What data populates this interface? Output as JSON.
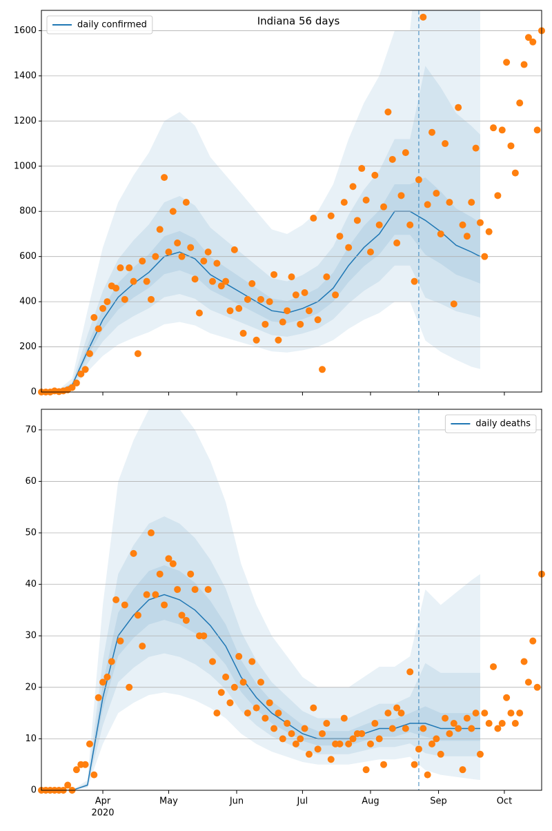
{
  "chart_data": [
    {
      "type": "line",
      "title": "Indiana 56 days",
      "legend": "upper left",
      "grid": true,
      "xlim": [
        "2020-03-04",
        "2020-10-18"
      ],
      "ylim": [
        0,
        1690
      ],
      "yticks": [
        0,
        200,
        400,
        600,
        800,
        1000,
        1200,
        1400,
        1600
      ],
      "vline": "2020-08-23",
      "band_color": "#1f77b4",
      "x": [
        "2020-03-04",
        "2020-03-11",
        "2020-03-18",
        "2020-03-25",
        "2020-04-01",
        "2020-04-08",
        "2020-04-15",
        "2020-04-22",
        "2020-04-29",
        "2020-05-06",
        "2020-05-13",
        "2020-05-20",
        "2020-05-27",
        "2020-06-03",
        "2020-06-10",
        "2020-06-17",
        "2020-06-24",
        "2020-07-01",
        "2020-07-08",
        "2020-07-15",
        "2020-07-22",
        "2020-07-29",
        "2020-08-05",
        "2020-08-12",
        "2020-08-19",
        "2020-08-26",
        "2020-09-02",
        "2020-09-09",
        "2020-09-16",
        "2020-09-20"
      ],
      "series": [
        {
          "name": "daily confirmed",
          "color": "#1f77b4",
          "values": [
            0,
            2,
            30,
            180,
            320,
            420,
            480,
            530,
            600,
            620,
            590,
            520,
            480,
            440,
            400,
            360,
            350,
            370,
            400,
            460,
            560,
            640,
            700,
            800,
            800,
            760,
            710,
            650,
            620,
            600
          ]
        }
      ],
      "bands": [
        {
          "lower": [
            0,
            1,
            15,
            90,
            160,
            210,
            240,
            265,
            300,
            310,
            295,
            260,
            240,
            220,
            200,
            180,
            175,
            185,
            200,
            230,
            280,
            320,
            350,
            400,
            400,
            228,
            178,
            143,
            112,
            102
          ],
          "upper": [
            0,
            4,
            60,
            360,
            640,
            840,
            960,
            1060,
            1200,
            1240,
            1180,
            1040,
            960,
            880,
            800,
            720,
            700,
            740,
            800,
            920,
            1120,
            1280,
            1400,
            1600,
            1600,
            2280,
            2130,
            2080,
            2108,
            2100
          ]
        },
        {
          "lower": [
            0,
            1,
            21,
            126,
            224,
            294,
            336,
            371,
            420,
            434,
            413,
            364,
            336,
            308,
            280,
            252,
            245,
            259,
            280,
            322,
            392,
            448,
            490,
            560,
            560,
            418,
            391,
            358,
            341,
            330
          ],
          "upper": [
            0,
            3,
            42,
            252,
            448,
            588,
            672,
            742,
            840,
            868,
            826,
            728,
            672,
            616,
            560,
            504,
            490,
            518,
            560,
            644,
            784,
            896,
            980,
            1120,
            1120,
            1444,
            1349,
            1235,
            1178,
            1140
          ]
        },
        {
          "lower": [
            0,
            2,
            26,
            157,
            278,
            365,
            418,
            461,
            522,
            539,
            513,
            452,
            418,
            383,
            348,
            313,
            305,
            322,
            348,
            400,
            487,
            557,
            609,
            696,
            696,
            608,
            568,
            520,
            496,
            480
          ],
          "upper": [
            0,
            2,
            35,
            207,
            368,
            483,
            552,
            610,
            690,
            713,
            679,
            598,
            552,
            506,
            460,
            414,
            403,
            426,
            460,
            529,
            644,
            736,
            805,
            920,
            920,
            950,
            888,
            813,
            775,
            750
          ]
        }
      ],
      "points": {
        "color": "#ff7f0e",
        "x": [
          "2020-03-04",
          "2020-03-06",
          "2020-03-08",
          "2020-03-10",
          "2020-03-12",
          "2020-03-14",
          "2020-03-16",
          "2020-03-18",
          "2020-03-20",
          "2020-03-22",
          "2020-03-24",
          "2020-03-26",
          "2020-03-28",
          "2020-03-30",
          "2020-04-01",
          "2020-04-03",
          "2020-04-05",
          "2020-04-07",
          "2020-04-09",
          "2020-04-11",
          "2020-04-13",
          "2020-04-15",
          "2020-04-17",
          "2020-04-19",
          "2020-04-21",
          "2020-04-23",
          "2020-04-25",
          "2020-04-27",
          "2020-04-29",
          "2020-05-01",
          "2020-05-03",
          "2020-05-05",
          "2020-05-07",
          "2020-05-09",
          "2020-05-11",
          "2020-05-13",
          "2020-05-15",
          "2020-05-17",
          "2020-05-19",
          "2020-05-21",
          "2020-05-23",
          "2020-05-25",
          "2020-05-27",
          "2020-05-29",
          "2020-05-31",
          "2020-06-02",
          "2020-06-04",
          "2020-06-06",
          "2020-06-08",
          "2020-06-10",
          "2020-06-12",
          "2020-06-14",
          "2020-06-16",
          "2020-06-18",
          "2020-06-20",
          "2020-06-22",
          "2020-06-24",
          "2020-06-26",
          "2020-06-28",
          "2020-06-30",
          "2020-07-02",
          "2020-07-04",
          "2020-07-06",
          "2020-07-08",
          "2020-07-10",
          "2020-07-12",
          "2020-07-14",
          "2020-07-16",
          "2020-07-18",
          "2020-07-20",
          "2020-07-22",
          "2020-07-24",
          "2020-07-26",
          "2020-07-28",
          "2020-07-30",
          "2020-08-01",
          "2020-08-03",
          "2020-08-05",
          "2020-08-07",
          "2020-08-09",
          "2020-08-11",
          "2020-08-13",
          "2020-08-15",
          "2020-08-17",
          "2020-08-19",
          "2020-08-21",
          "2020-08-23",
          "2020-08-25",
          "2020-08-27",
          "2020-08-29",
          "2020-08-31",
          "2020-09-02",
          "2020-09-04",
          "2020-09-06",
          "2020-09-08",
          "2020-09-10",
          "2020-09-12",
          "2020-09-14",
          "2020-09-16",
          "2020-09-18",
          "2020-09-20",
          "2020-09-22",
          "2020-09-24",
          "2020-09-26",
          "2020-09-28",
          "2020-09-30",
          "2020-10-02",
          "2020-10-04",
          "2020-10-06",
          "2020-10-08",
          "2020-10-10",
          "2020-10-12",
          "2020-10-14",
          "2020-10-16",
          "2020-10-18"
        ],
        "values": [
          0,
          0,
          0,
          5,
          2,
          5,
          10,
          20,
          40,
          80,
          100,
          170,
          330,
          280,
          370,
          400,
          470,
          460,
          550,
          410,
          550,
          490,
          170,
          580,
          490,
          410,
          600,
          720,
          950,
          620,
          800,
          660,
          600,
          840,
          640,
          500,
          350,
          580,
          620,
          490,
          570,
          470,
          490,
          360,
          630,
          370,
          260,
          410,
          480,
          230,
          410,
          300,
          400,
          520,
          230,
          310,
          360,
          510,
          430,
          300,
          440,
          360,
          770,
          320,
          100,
          510,
          780,
          430,
          690,
          840,
          640,
          910,
          760,
          990,
          850,
          620,
          960,
          740,
          820,
          1240,
          1030,
          660,
          870,
          1060,
          740,
          490,
          940,
          1660,
          830,
          1150,
          880,
          700,
          1100,
          840,
          390,
          1260,
          740,
          690,
          840,
          1080,
          750,
          600,
          710,
          1170,
          870,
          1160,
          1460,
          1090,
          970,
          1280,
          1450,
          1570,
          1550,
          1160,
          1600
        ]
      }
    },
    {
      "type": "line",
      "legend": "upper right",
      "grid": true,
      "xlim": [
        "2020-03-04",
        "2020-10-18"
      ],
      "ylim": [
        0,
        74
      ],
      "yticks": [
        0,
        10,
        20,
        30,
        40,
        50,
        60,
        70
      ],
      "xticks": [
        {
          "value": "2020-04-01",
          "label": "Apr"
        },
        {
          "value": "2020-05-01",
          "label": "May"
        },
        {
          "value": "2020-06-01",
          "label": "Jun"
        },
        {
          "value": "2020-07-01",
          "label": "Jul"
        },
        {
          "value": "2020-08-01",
          "label": "Aug"
        },
        {
          "value": "2020-09-01",
          "label": "Sep"
        },
        {
          "value": "2020-10-01",
          "label": "Oct"
        }
      ],
      "x_sublabel": "2020",
      "vline": "2020-08-23",
      "band_color": "#1f77b4",
      "x": [
        "2020-03-04",
        "2020-03-11",
        "2020-03-18",
        "2020-03-25",
        "2020-04-01",
        "2020-04-08",
        "2020-04-15",
        "2020-04-22",
        "2020-04-29",
        "2020-05-06",
        "2020-05-13",
        "2020-05-20",
        "2020-05-27",
        "2020-06-03",
        "2020-06-10",
        "2020-06-17",
        "2020-06-24",
        "2020-07-01",
        "2020-07-08",
        "2020-07-15",
        "2020-07-22",
        "2020-07-29",
        "2020-08-05",
        "2020-08-12",
        "2020-08-19",
        "2020-08-26",
        "2020-09-02",
        "2020-09-09",
        "2020-09-16",
        "2020-09-20"
      ],
      "series": [
        {
          "name": "daily deaths",
          "color": "#1f77b4",
          "values": [
            0,
            0,
            0,
            1,
            18,
            30,
            34,
            37,
            38,
            37,
            35,
            32,
            28,
            22,
            18,
            15,
            13,
            11,
            10,
            10,
            10,
            11,
            12,
            12,
            13,
            13,
            12,
            12,
            12,
            12
          ]
        }
      ],
      "bands": [
        {
          "lower": [
            0,
            0,
            0,
            0.5,
            9,
            15,
            17,
            18.5,
            19,
            18.5,
            17.5,
            16,
            14,
            11,
            9,
            7.5,
            6.5,
            5.5,
            5,
            5,
            5,
            5.5,
            6,
            6,
            6.5,
            3.9,
            3,
            2.6,
            2.2,
            2
          ],
          "upper": [
            0,
            0,
            0,
            2,
            36,
            60,
            68,
            74,
            76,
            74,
            70,
            64,
            56,
            44,
            36,
            30,
            26,
            22,
            20,
            20,
            20,
            22,
            24,
            24,
            26,
            39,
            36,
            38.4,
            40.8,
            42
          ]
        },
        {
          "lower": [
            0,
            0,
            0,
            0.7,
            12.6,
            21,
            23.8,
            25.9,
            26.6,
            25.9,
            24.5,
            22.4,
            19.6,
            15.4,
            12.6,
            10.5,
            9.1,
            7.7,
            7,
            7,
            7,
            7.7,
            8.4,
            8.4,
            9.1,
            7.2,
            6.6,
            6.6,
            6.6,
            6.6
          ],
          "upper": [
            0,
            0,
            0,
            1.4,
            25.2,
            42,
            47.6,
            51.8,
            53.2,
            51.8,
            49,
            44.8,
            39.2,
            30.8,
            25.2,
            21,
            18.2,
            15.4,
            14,
            14,
            14,
            15.4,
            16.8,
            16.8,
            18.2,
            24.7,
            22.8,
            22.8,
            22.8,
            22.8
          ]
        },
        {
          "lower": [
            0,
            0,
            0,
            0.9,
            15.7,
            26.1,
            29.6,
            32.2,
            33.1,
            32.2,
            30.5,
            27.8,
            24.4,
            19.1,
            15.7,
            13,
            11.3,
            9.6,
            8.7,
            8.7,
            8.7,
            9.6,
            10.4,
            10.4,
            11.3,
            10.4,
            9.6,
            9.6,
            9.6,
            9.6
          ],
          "upper": [
            0,
            0,
            0,
            1.2,
            20.7,
            34.5,
            39.1,
            42.6,
            43.7,
            42.6,
            40.3,
            36.8,
            32.2,
            25.3,
            20.7,
            17.3,
            15,
            12.7,
            11.5,
            11.5,
            11.5,
            12.7,
            13.8,
            13.8,
            15,
            16.3,
            15,
            15,
            15,
            15
          ]
        }
      ],
      "points": {
        "color": "#ff7f0e",
        "x": [
          "2020-03-04",
          "2020-03-06",
          "2020-03-08",
          "2020-03-10",
          "2020-03-12",
          "2020-03-14",
          "2020-03-16",
          "2020-03-18",
          "2020-03-20",
          "2020-03-22",
          "2020-03-24",
          "2020-03-26",
          "2020-03-28",
          "2020-03-30",
          "2020-04-01",
          "2020-04-03",
          "2020-04-05",
          "2020-04-07",
          "2020-04-09",
          "2020-04-11",
          "2020-04-13",
          "2020-04-15",
          "2020-04-17",
          "2020-04-19",
          "2020-04-21",
          "2020-04-23",
          "2020-04-25",
          "2020-04-27",
          "2020-04-29",
          "2020-05-01",
          "2020-05-03",
          "2020-05-05",
          "2020-05-07",
          "2020-05-09",
          "2020-05-11",
          "2020-05-13",
          "2020-05-15",
          "2020-05-17",
          "2020-05-19",
          "2020-05-21",
          "2020-05-23",
          "2020-05-25",
          "2020-05-27",
          "2020-05-29",
          "2020-05-31",
          "2020-06-02",
          "2020-06-04",
          "2020-06-06",
          "2020-06-08",
          "2020-06-10",
          "2020-06-12",
          "2020-06-14",
          "2020-06-16",
          "2020-06-18",
          "2020-06-20",
          "2020-06-22",
          "2020-06-24",
          "2020-06-26",
          "2020-06-28",
          "2020-06-30",
          "2020-07-02",
          "2020-07-04",
          "2020-07-06",
          "2020-07-08",
          "2020-07-10",
          "2020-07-12",
          "2020-07-14",
          "2020-07-16",
          "2020-07-18",
          "2020-07-20",
          "2020-07-22",
          "2020-07-24",
          "2020-07-26",
          "2020-07-28",
          "2020-07-30",
          "2020-08-01",
          "2020-08-03",
          "2020-08-05",
          "2020-08-07",
          "2020-08-09",
          "2020-08-11",
          "2020-08-13",
          "2020-08-15",
          "2020-08-17",
          "2020-08-19",
          "2020-08-21",
          "2020-08-23",
          "2020-08-25",
          "2020-08-27",
          "2020-08-29",
          "2020-08-31",
          "2020-09-02",
          "2020-09-04",
          "2020-09-06",
          "2020-09-08",
          "2020-09-10",
          "2020-09-12",
          "2020-09-14",
          "2020-09-16",
          "2020-09-18",
          "2020-09-20",
          "2020-09-22",
          "2020-09-24",
          "2020-09-26",
          "2020-09-28",
          "2020-09-30",
          "2020-10-02",
          "2020-10-04",
          "2020-10-06",
          "2020-10-08",
          "2020-10-10",
          "2020-10-12",
          "2020-10-14",
          "2020-10-16",
          "2020-10-18"
        ],
        "values": [
          0,
          0,
          0,
          0,
          0,
          0,
          1,
          0,
          4,
          5,
          5,
          9,
          3,
          18,
          21,
          22,
          25,
          37,
          29,
          36,
          20,
          46,
          34,
          28,
          38,
          50,
          38,
          42,
          36,
          45,
          44,
          39,
          34,
          33,
          42,
          39,
          30,
          30,
          39,
          25,
          15,
          19,
          22,
          17,
          20,
          26,
          21,
          15,
          25,
          16,
          21,
          14,
          17,
          12,
          15,
          10,
          13,
          11,
          9,
          10,
          12,
          7,
          16,
          8,
          11,
          13,
          6,
          9,
          9,
          14,
          9,
          10,
          11,
          11,
          4,
          9,
          13,
          10,
          5,
          15,
          12,
          16,
          15,
          12,
          23,
          5,
          8,
          12,
          3,
          9,
          10,
          7,
          14,
          11,
          13,
          12,
          4,
          14,
          12,
          15,
          7,
          15,
          13,
          24,
          12,
          13,
          18,
          15,
          13,
          15,
          25,
          21,
          29,
          20,
          42
        ]
      }
    }
  ]
}
